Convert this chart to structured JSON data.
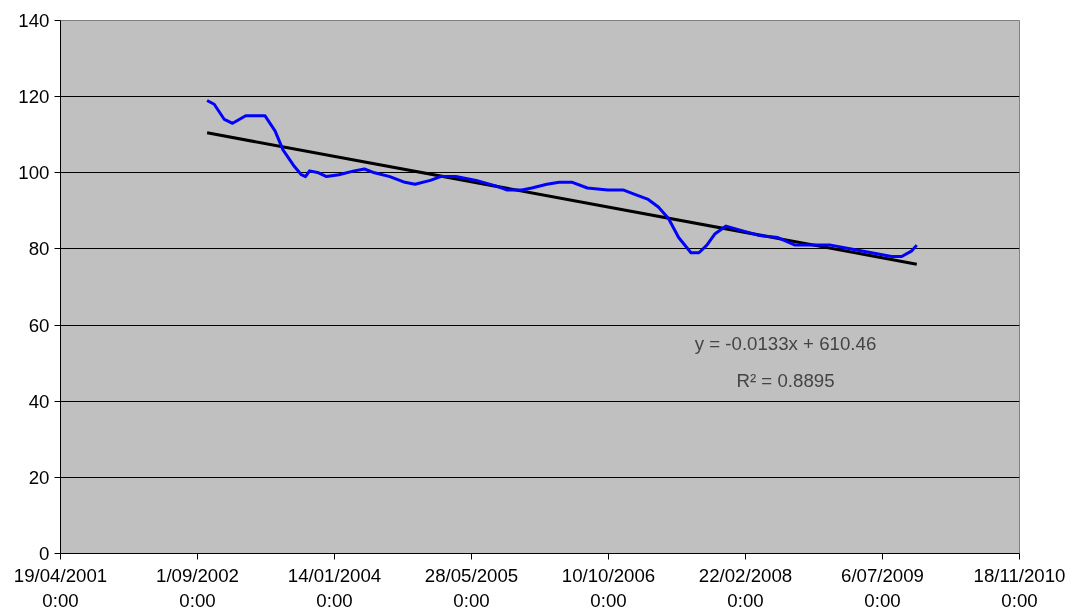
{
  "chart_data": {
    "type": "line",
    "grid": "y",
    "ylim": [
      0,
      140
    ],
    "yticks": [
      0,
      20,
      40,
      60,
      80,
      100,
      120,
      140
    ],
    "xlim": [
      "2001-04-19",
      "2010-11-18"
    ],
    "xticks": [
      {
        "value": "2001-04-19",
        "label": "19/04/2001 0:00"
      },
      {
        "value": "2002-09-01",
        "label": "1/09/2002 0:00"
      },
      {
        "value": "2004-01-14",
        "label": "14/01/2004 0:00"
      },
      {
        "value": "2005-05-28",
        "label": "28/05/2005 0:00"
      },
      {
        "value": "2006-10-10",
        "label": "10/10/2006 0:00"
      },
      {
        "value": "2008-02-22",
        "label": "22/02/2008 0:00"
      },
      {
        "value": "2009-07-06",
        "label": "6/07/2009 0:00"
      },
      {
        "value": "2010-11-18",
        "label": "18/11/2010 0:00"
      }
    ],
    "annotations": [
      "y = -0.0133x + 610.46",
      "R² = 0.8895"
    ],
    "series": [
      {
        "color": "#0000ff",
        "x": [
          "2002-10-06",
          "2002-11-01",
          "2002-12-08",
          "2003-01-07",
          "2003-02-24",
          "2003-05-05",
          "2003-06-11",
          "2003-07-10",
          "2003-08-17",
          "2003-09-15",
          "2003-09-30",
          "2003-10-15",
          "2003-11-17",
          "2003-12-16",
          "2004-01-30",
          "2004-03-26",
          "2004-05-02",
          "2004-06-08",
          "2004-08-03",
          "2004-09-27",
          "2004-11-03",
          "2004-12-29",
          "2005-02-04",
          "2005-04-01",
          "2005-06-14",
          "2005-08-27",
          "2005-10-03",
          "2005-11-28",
          "2006-01-03",
          "2006-02-27",
          "2006-04-13",
          "2006-05-31",
          "2006-07-25",
          "2006-10-07",
          "2006-12-02",
          "2007-01-26",
          "2007-03-04",
          "2007-04-10",
          "2007-05-17",
          "2007-06-23",
          "2007-08-07",
          "2007-09-05",
          "2007-10-04",
          "2007-11-03",
          "2007-12-13",
          "2008-01-30",
          "2008-04-14",
          "2008-06-19",
          "2008-08-21",
          "2008-11-03",
          "2008-12-29",
          "2009-03-14",
          "2009-05-27",
          "2009-08-08",
          "2009-09-14",
          "2009-10-21",
          "2009-11-08"
        ],
        "values": [
          119,
          118,
          114,
          113,
          115,
          115,
          111,
          106,
          102,
          99.5,
          99,
          100.5,
          100,
          99,
          99.5,
          100.5,
          101,
          100,
          99,
          97.5,
          97,
          98,
          99,
          99,
          98,
          96.5,
          95.5,
          95.5,
          96,
          97,
          97.5,
          97.5,
          96,
          95.5,
          95.5,
          94,
          93,
          91,
          88,
          83,
          79,
          79,
          81,
          84,
          86,
          85,
          83.5,
          83,
          81,
          81,
          81,
          80,
          79,
          78,
          78,
          79.5,
          81
        ]
      },
      {
        "color": "#000000",
        "x": [
          "2002-10-06",
          "2009-11-08"
        ],
        "values": [
          110.5,
          76
        ]
      }
    ]
  }
}
